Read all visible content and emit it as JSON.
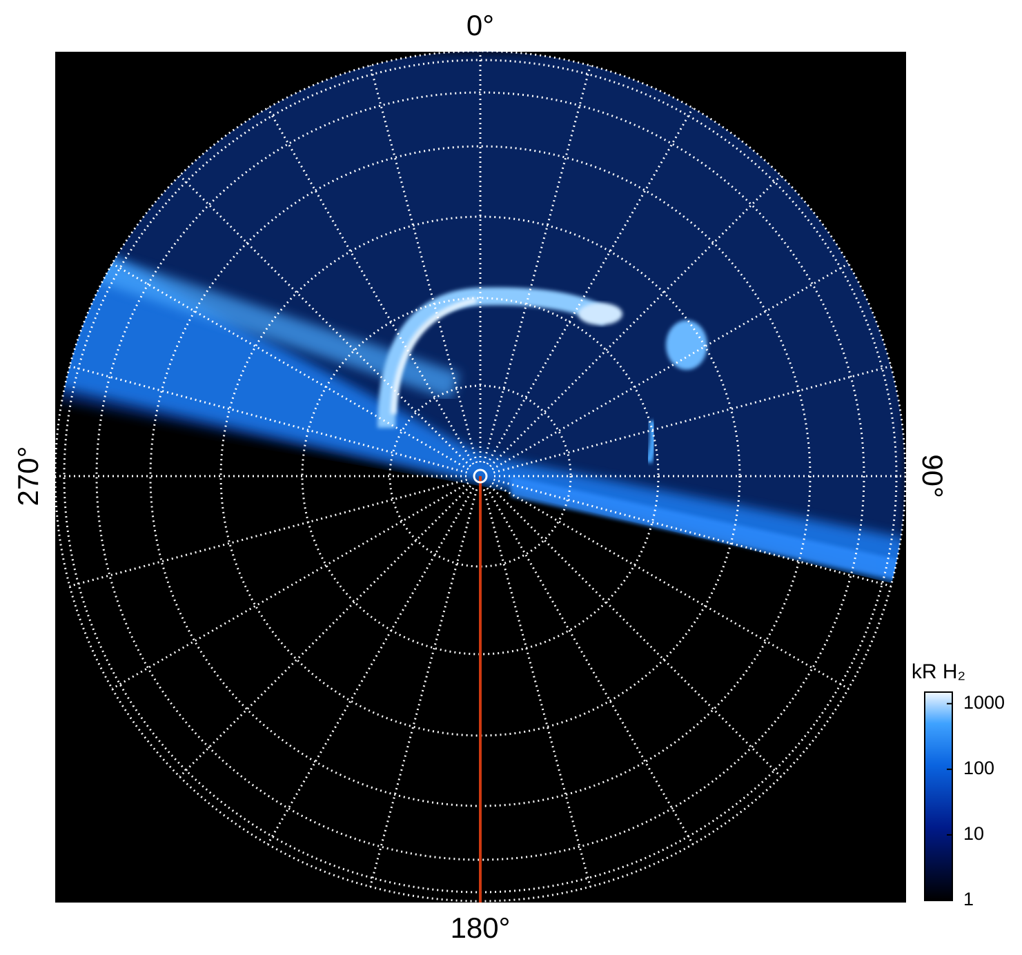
{
  "chart_data": {
    "type": "polar-image",
    "angle_labels": [
      "0°",
      "90°",
      "180°",
      "270°"
    ],
    "colorbar": {
      "label": "kR H₂",
      "scale": "log",
      "lim": [
        1,
        1500
      ],
      "ticks": [
        1,
        10,
        100,
        1000
      ]
    }
  }
}
